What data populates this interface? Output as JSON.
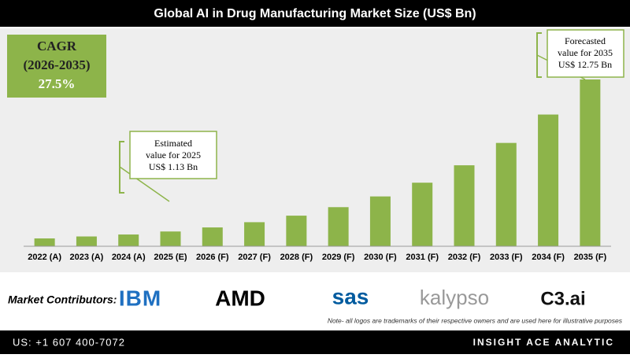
{
  "chart_data": {
    "type": "bar",
    "title": "Global AI in Drug Manufacturing Market Size (US$ Bn)",
    "categories": [
      "2022 (A)",
      "2023 (A)",
      "2024 (A)",
      "2025 (E)",
      "2026 (F)",
      "2027 (F)",
      "2028 (F)",
      "2029 (F)",
      "2030 (F)",
      "2031 (F)",
      "2032 (F)",
      "2033 (F)",
      "2034 (F)",
      "2035 (F)"
    ],
    "values": [
      0.6,
      0.75,
      0.9,
      1.13,
      1.44,
      1.84,
      2.34,
      2.99,
      3.81,
      4.86,
      6.19,
      7.9,
      10.07,
      12.75
    ],
    "color": "#8db44a",
    "annotations": [
      {
        "lines": [
          "Estimated",
          "value for 2025",
          "US$ 1.13 Bn"
        ]
      },
      {
        "lines": [
          "Forecasted",
          "value for 2035",
          "US$ 12.75 Bn"
        ]
      }
    ]
  },
  "cagr": {
    "label": "CAGR",
    "period": "(2026-2035)",
    "value": "27.5%"
  },
  "contributors": {
    "label": "Market Contributors:",
    "logos": [
      "IBM",
      "AMD",
      "sas",
      "kalypso",
      "C3.ai"
    ],
    "note": "Note- all logos are trademarks of their respective owners and are used here for illustrative purposes"
  },
  "footer": {
    "phone": "US: +1 607 400-7072",
    "brand": "INSIGHT ACE ANALYTIC"
  }
}
